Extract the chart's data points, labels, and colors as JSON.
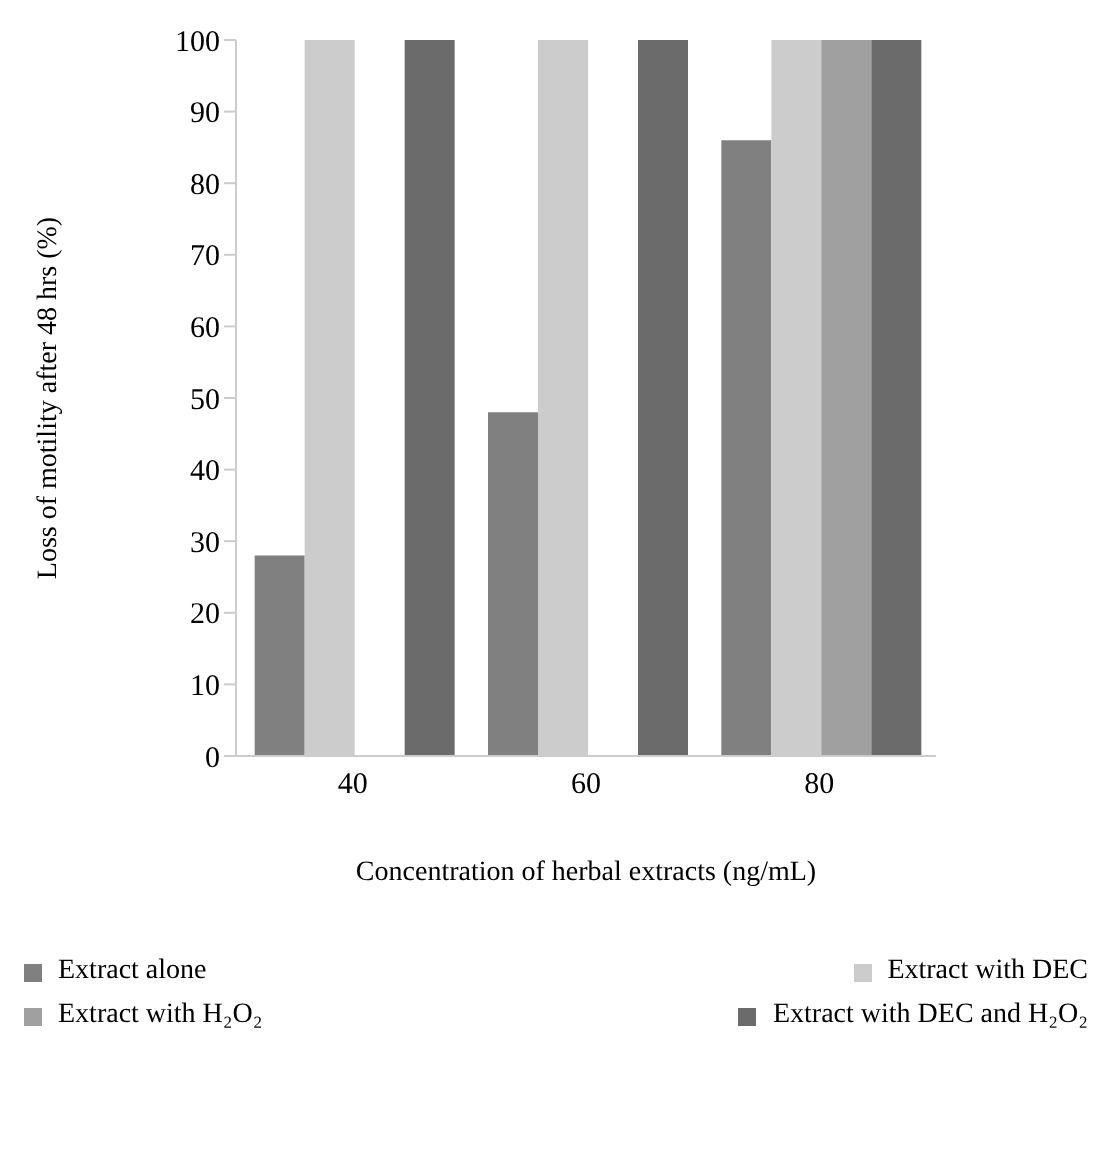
{
  "chart_data": {
    "type": "bar",
    "xlabel": "Concentration of herbal extracts (ng/mL)",
    "ylabel": "Loss of motility after 48 hrs (%)",
    "categories": [
      "40",
      "60",
      "80"
    ],
    "series": [
      {
        "name": "Extract alone",
        "color": "#808080",
        "values": [
          28,
          48,
          86
        ]
      },
      {
        "name": "Extract with DEC",
        "color": "#cccccc",
        "values": [
          100,
          100,
          100
        ]
      },
      {
        "name": "Extract with H₂O₂",
        "color": "#a0a0a0",
        "values": [
          0,
          0,
          100
        ]
      },
      {
        "name": "Extract with DEC and H₂O₂",
        "color": "#6b6b6b",
        "values": [
          100,
          100,
          100
        ]
      }
    ],
    "ylim": [
      0,
      100
    ],
    "yticks": [
      0,
      10,
      20,
      30,
      40,
      50,
      60,
      70,
      80,
      90,
      100
    ],
    "grid": false,
    "legend": "bottom"
  }
}
